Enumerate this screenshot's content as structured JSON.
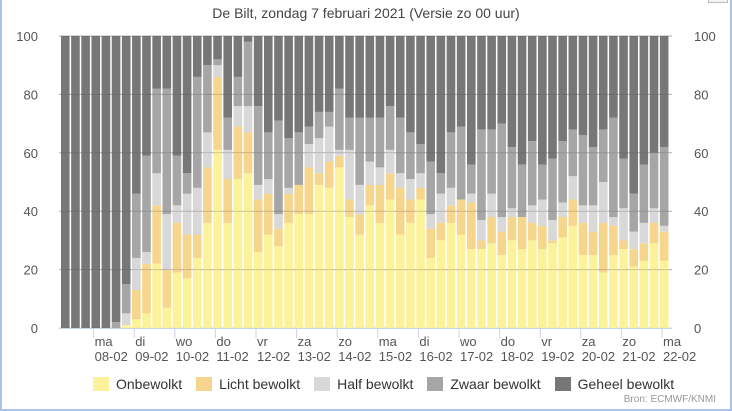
{
  "title": "De Bilt, zondag 7 februari 2021 (Versie zo 00 uur)",
  "source": "Bron: ECMWF/KNMI",
  "chart_data": {
    "type": "bar",
    "stacked": true,
    "title": "De Bilt, zondag 7 februari 2021 (Versie zo 00 uur)",
    "xlabel": "",
    "ylabel": "",
    "ylim": [
      0,
      100
    ],
    "yticks": [
      0,
      20,
      40,
      60,
      80,
      100
    ],
    "grid": true,
    "legend_position": "bottom",
    "bars_per_day": 4,
    "x_ticks": [
      {
        "day": "ma",
        "date": "08-02"
      },
      {
        "day": "di",
        "date": "09-02"
      },
      {
        "day": "wo",
        "date": "10-02"
      },
      {
        "day": "do",
        "date": "11-02"
      },
      {
        "day": "vr",
        "date": "12-02"
      },
      {
        "day": "za",
        "date": "13-02"
      },
      {
        "day": "zo",
        "date": "14-02"
      },
      {
        "day": "ma",
        "date": "15-02"
      },
      {
        "day": "di",
        "date": "16-02"
      },
      {
        "day": "wo",
        "date": "17-02"
      },
      {
        "day": "do",
        "date": "18-02"
      },
      {
        "day": "vr",
        "date": "19-02"
      },
      {
        "day": "za",
        "date": "20-02"
      },
      {
        "day": "zo",
        "date": "21-02"
      },
      {
        "day": "ma",
        "date": "22-02"
      }
    ],
    "series": [
      {
        "name": "Onbewolkt",
        "color": "#fcf29a",
        "values": [
          0,
          0,
          0,
          0,
          0,
          0,
          1,
          3,
          5,
          22,
          7,
          19,
          17,
          24,
          36,
          61,
          36,
          51,
          53,
          26,
          32,
          28,
          36,
          39,
          39,
          49,
          48,
          55,
          38,
          32,
          42,
          36,
          44,
          32,
          36,
          44,
          24,
          30,
          36,
          32,
          27,
          27,
          29,
          25,
          30,
          27,
          30,
          27,
          29,
          31,
          35,
          25,
          25,
          19,
          25,
          27,
          21,
          23,
          29,
          23
        ]
      },
      {
        "name": "Licht bewolkt",
        "color": "#f6d68c",
        "values": [
          0,
          0,
          0,
          0,
          0,
          0,
          0,
          10,
          17,
          20,
          13,
          17,
          15,
          8,
          19,
          25,
          15,
          18,
          14,
          18,
          14,
          6,
          10,
          10,
          16,
          4,
          9,
          4,
          6,
          7,
          7,
          13,
          9,
          16,
          8,
          4,
          10,
          6,
          6,
          12,
          16,
          3,
          9,
          8,
          8,
          11,
          6,
          8,
          1,
          7,
          9,
          11,
          8,
          17,
          10,
          3,
          6,
          6,
          7,
          10
        ]
      },
      {
        "name": "Half bewolkt",
        "color": "#d8d8d8",
        "values": [
          0,
          0,
          0,
          0,
          0,
          0,
          4,
          11,
          4,
          11,
          19,
          6,
          14,
          16,
          12,
          4,
          10,
          7,
          9,
          5,
          5,
          5,
          2,
          0,
          8,
          12,
          12,
          2,
          17,
          10,
          8,
          6,
          8,
          5,
          7,
          5,
          5,
          10,
          6,
          0,
          3,
          7,
          8,
          5,
          3,
          0,
          6,
          9,
          7,
          5,
          8,
          6,
          9,
          14,
          3,
          11,
          6,
          7,
          5,
          2
        ]
      },
      {
        "name": "Zwaar bewolkt",
        "color": "#a6a6a6",
        "values": [
          0,
          0,
          0,
          0,
          0,
          2,
          10,
          22,
          33,
          29,
          43,
          17,
          7,
          38,
          23,
          2,
          11,
          10,
          22,
          27,
          16,
          32,
          17,
          18,
          6,
          9,
          5,
          21,
          11,
          23,
          15,
          17,
          15,
          19,
          16,
          10,
          18,
          7,
          19,
          25,
          10,
          31,
          22,
          32,
          21,
          18,
          22,
          12,
          21,
          21,
          16,
          24,
          20,
          18,
          34,
          17,
          13,
          20,
          19,
          27
        ]
      },
      {
        "name": "Geheel bewolkt",
        "color": "#777777",
        "values": [
          100,
          100,
          100,
          100,
          100,
          98,
          85,
          54,
          41,
          18,
          18,
          41,
          47,
          14,
          10,
          8,
          28,
          14,
          2,
          24,
          33,
          29,
          35,
          33,
          31,
          26,
          26,
          18,
          28,
          28,
          28,
          28,
          24,
          28,
          33,
          37,
          43,
          47,
          33,
          31,
          44,
          32,
          32,
          30,
          38,
          44,
          36,
          44,
          42,
          36,
          32,
          34,
          38,
          32,
          28,
          42,
          54,
          44,
          40,
          38
        ]
      }
    ]
  }
}
